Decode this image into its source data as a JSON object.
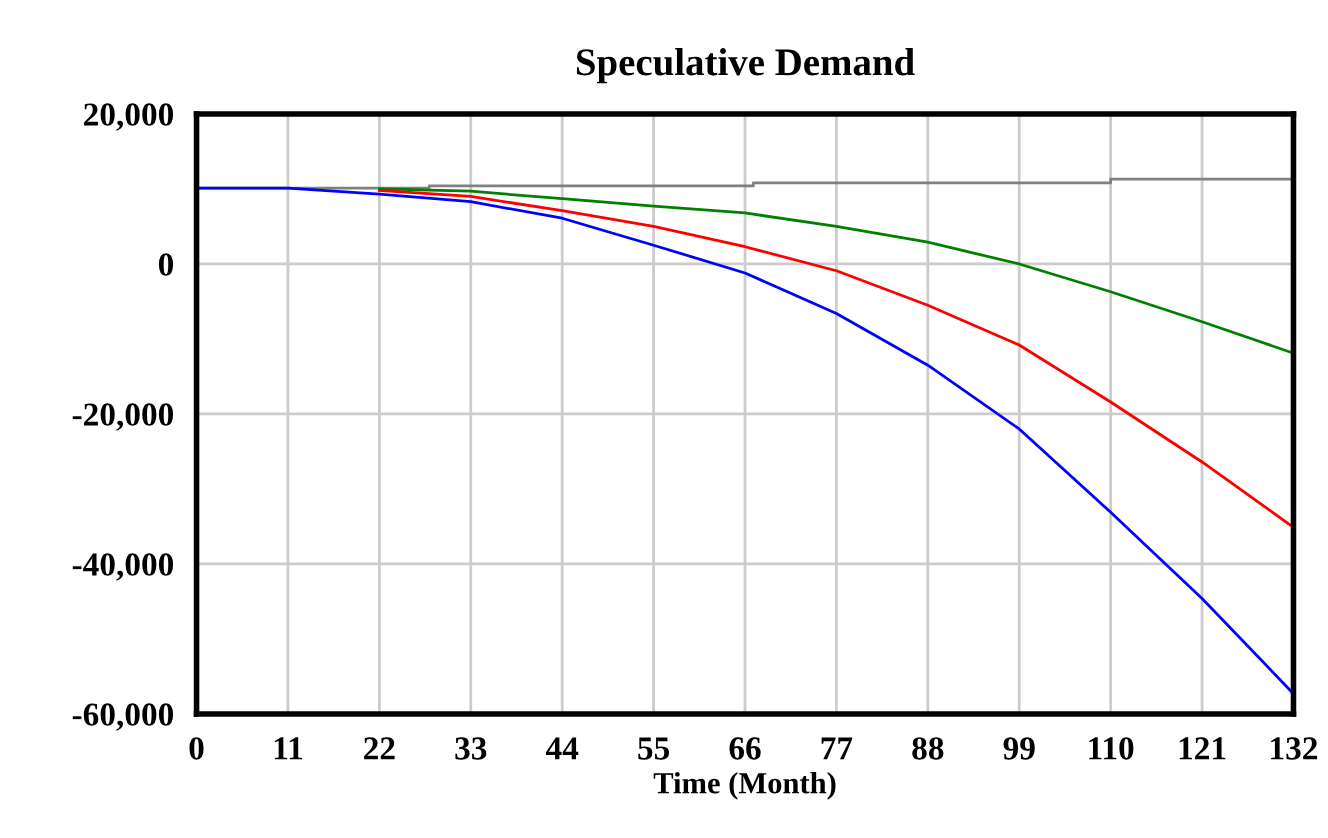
{
  "chart_data": {
    "type": "line",
    "title": "Speculative Demand",
    "xlabel": "Time (Month)",
    "xlim": [
      0,
      132
    ],
    "xticks": [
      0,
      11,
      22,
      33,
      44,
      55,
      66,
      77,
      88,
      99,
      110,
      121,
      132
    ],
    "ylim": [
      -60000,
      20000
    ],
    "yticks": [
      {
        "value": 20000,
        "label": "20,000"
      },
      {
        "value": 0,
        "label": "0"
      },
      {
        "value": -20000,
        "label": "-20,000"
      },
      {
        "value": -40000,
        "label": "-40,000"
      },
      {
        "value": -60000,
        "label": "-60,000"
      }
    ],
    "grid": true,
    "legend": false,
    "marker": "none",
    "line_style": "solid",
    "series": [
      {
        "type": "step",
        "color": "#808080",
        "x": [
          0,
          28,
          67,
          110,
          132
        ],
        "values": [
          10100,
          10400,
          10800,
          11300,
          11300
        ]
      },
      {
        "color": "#008000",
        "x": [
          22,
          33,
          44,
          55,
          66,
          77,
          88,
          99,
          110,
          121,
          132
        ],
        "values": [
          10000,
          9700,
          8700,
          7700,
          6800,
          5000,
          2900,
          0,
          -3700,
          -7700,
          -11900
        ]
      },
      {
        "color": "#ff0000",
        "x": [
          22,
          33,
          44,
          55,
          66,
          77,
          88,
          99,
          110,
          121,
          132
        ],
        "values": [
          9800,
          9000,
          7100,
          5000,
          2300,
          -900,
          -5500,
          -10800,
          -18400,
          -26400,
          -35100
        ]
      },
      {
        "color": "#0000ff",
        "x": [
          0,
          11,
          22,
          33,
          44,
          55,
          66,
          77,
          88,
          99,
          110,
          121,
          132
        ],
        "values": [
          10100,
          10100,
          9300,
          8300,
          6100,
          2500,
          -1200,
          -6600,
          -13500,
          -22000,
          -33100,
          -44600,
          -57300
        ]
      }
    ]
  }
}
